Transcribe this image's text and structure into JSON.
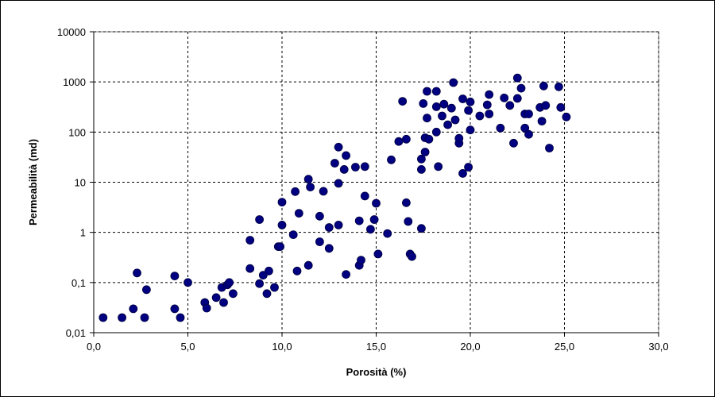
{
  "chart_data": {
    "type": "scatter",
    "xlabel": "Porosità (%)",
    "ylabel": "Permeabilità (md)",
    "xlim": [
      0,
      30
    ],
    "ylim": [
      0.01,
      10000
    ],
    "y_scale": "log",
    "x_tick_labels": [
      "0,0",
      "5,0",
      "10,0",
      "15,0",
      "20,0",
      "25,0",
      "30,0"
    ],
    "y_tick_labels": [
      "0,01",
      "0,1",
      "1",
      "10",
      "100",
      "1000",
      "10000"
    ],
    "grid": true,
    "legend": "none",
    "marker_color": "#000080",
    "points": [
      [
        0.5,
        0.02
      ],
      [
        1.5,
        0.02
      ],
      [
        2.1,
        0.03
      ],
      [
        2.3,
        0.155
      ],
      [
        2.7,
        0.02
      ],
      [
        2.8,
        0.072
      ],
      [
        4.3,
        0.135
      ],
      [
        4.3,
        0.03
      ],
      [
        4.6,
        0.02
      ],
      [
        5.0,
        0.1
      ],
      [
        5.9,
        0.04
      ],
      [
        6.0,
        0.031
      ],
      [
        6.5,
        0.05
      ],
      [
        6.8,
        0.08
      ],
      [
        6.9,
        0.04
      ],
      [
        7.1,
        0.09
      ],
      [
        7.2,
        0.1
      ],
      [
        7.4,
        0.06
      ],
      [
        8.3,
        0.7
      ],
      [
        8.3,
        0.19
      ],
      [
        8.8,
        1.8
      ],
      [
        8.8,
        0.095
      ],
      [
        9.0,
        0.14
      ],
      [
        9.2,
        0.06
      ],
      [
        9.3,
        0.17
      ],
      [
        9.6,
        0.08
      ],
      [
        9.8,
        0.52
      ],
      [
        9.9,
        0.52
      ],
      [
        10.0,
        4.0
      ],
      [
        10.0,
        1.4
      ],
      [
        10.6,
        0.9
      ],
      [
        10.7,
        6.5
      ],
      [
        10.8,
        0.17
      ],
      [
        10.9,
        2.4
      ],
      [
        11.4,
        11.5
      ],
      [
        11.5,
        8.0
      ],
      [
        11.4,
        0.22
      ],
      [
        12.0,
        2.1
      ],
      [
        12.0,
        0.65
      ],
      [
        12.2,
        6.6
      ],
      [
        12.5,
        0.48
      ],
      [
        12.5,
        1.25
      ],
      [
        12.8,
        24.0
      ],
      [
        13.0,
        50.0
      ],
      [
        13.0,
        9.5
      ],
      [
        13.0,
        1.4
      ],
      [
        13.3,
        18.0
      ],
      [
        13.4,
        34.0
      ],
      [
        13.4,
        0.145
      ],
      [
        13.9,
        20.0
      ],
      [
        14.1,
        1.7
      ],
      [
        14.1,
        0.22
      ],
      [
        14.2,
        0.28
      ],
      [
        14.4,
        20.5
      ],
      [
        14.4,
        5.3
      ],
      [
        14.7,
        1.15
      ],
      [
        14.9,
        1.8
      ],
      [
        15.0,
        3.8
      ],
      [
        15.1,
        0.37
      ],
      [
        15.6,
        0.95
      ],
      [
        15.8,
        28.0
      ],
      [
        16.2,
        65.0
      ],
      [
        16.4,
        410.0
      ],
      [
        16.6,
        72.0
      ],
      [
        16.6,
        3.9
      ],
      [
        16.7,
        1.65
      ],
      [
        16.8,
        0.37
      ],
      [
        16.9,
        0.33
      ],
      [
        17.4,
        29.0
      ],
      [
        17.4,
        18.0
      ],
      [
        17.4,
        1.2
      ],
      [
        17.5,
        370.0
      ],
      [
        17.6,
        40.0
      ],
      [
        17.6,
        77.0
      ],
      [
        17.7,
        650.0
      ],
      [
        17.7,
        190.0
      ],
      [
        17.8,
        72.0
      ],
      [
        18.2,
        650.0
      ],
      [
        18.2,
        320.0
      ],
      [
        18.2,
        100.0
      ],
      [
        18.3,
        20.5
      ],
      [
        18.5,
        210.0
      ],
      [
        18.6,
        360.0
      ],
      [
        18.8,
        140.0
      ],
      [
        19.0,
        300.0
      ],
      [
        19.1,
        970.0
      ],
      [
        19.2,
        175.0
      ],
      [
        19.4,
        60.0
      ],
      [
        19.4,
        75.0
      ],
      [
        19.6,
        460.0
      ],
      [
        19.6,
        15.0
      ],
      [
        19.9,
        20.0
      ],
      [
        19.9,
        270.0
      ],
      [
        20.0,
        400.0
      ],
      [
        20.0,
        110.0
      ],
      [
        20.5,
        210.0
      ],
      [
        20.9,
        350.0
      ],
      [
        21.0,
        560.0
      ],
      [
        21.0,
        230.0
      ],
      [
        21.6,
        120.0
      ],
      [
        21.8,
        480.0
      ],
      [
        22.1,
        340.0
      ],
      [
        22.3,
        60.0
      ],
      [
        22.5,
        470.0
      ],
      [
        22.5,
        1200.0
      ],
      [
        22.7,
        750.0
      ],
      [
        22.9,
        120.0
      ],
      [
        22.9,
        230.0
      ],
      [
        23.1,
        230.0
      ],
      [
        23.1,
        90.0
      ],
      [
        23.7,
        310.0
      ],
      [
        23.8,
        165.0
      ],
      [
        23.9,
        830.0
      ],
      [
        24.0,
        340.0
      ],
      [
        24.2,
        48.0
      ],
      [
        24.7,
        800.0
      ],
      [
        24.8,
        310.0
      ],
      [
        25.1,
        200.0
      ]
    ]
  }
}
